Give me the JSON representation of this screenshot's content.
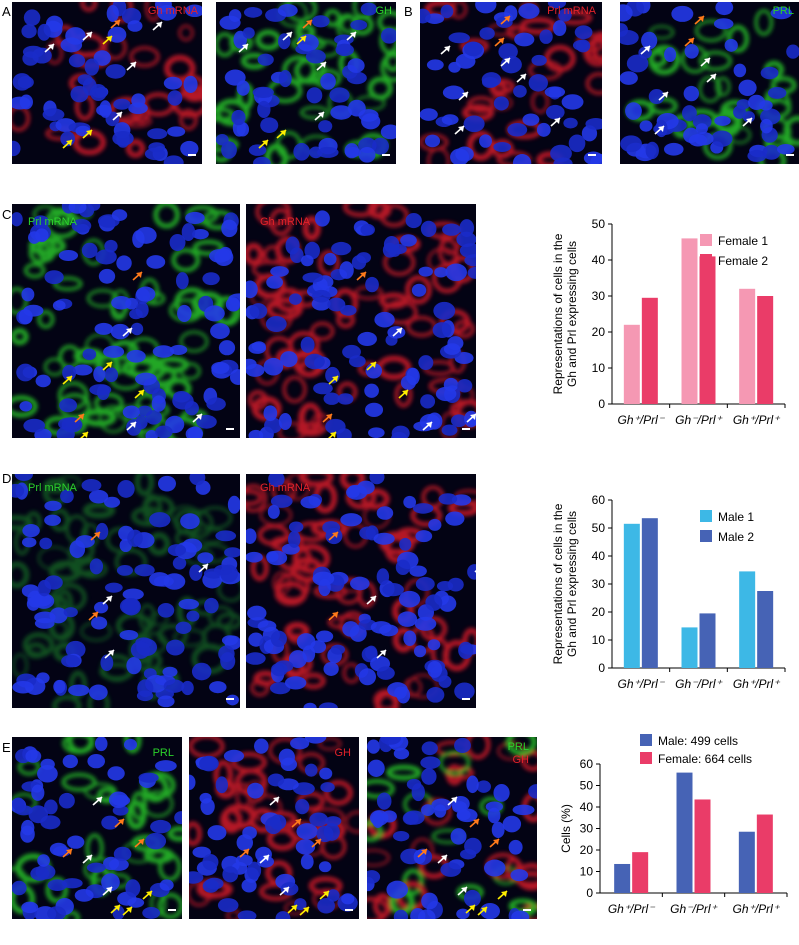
{
  "panels": {
    "A": {
      "letter": "A",
      "img1_label": "Gh mRNA",
      "img2_label": "GH"
    },
    "B": {
      "letter": "B",
      "img1_label": "Prl mRNA",
      "img2_label": "PRL"
    },
    "C": {
      "letter": "C",
      "img1_label": "Prl mRNA",
      "img2_label": "Gh mRNA"
    },
    "D": {
      "letter": "D",
      "img1_label": "Prl mRNA",
      "img2_label": "Gh mRNA"
    },
    "E": {
      "letter": "E",
      "img1_label": "PRL",
      "img2_label": "GH",
      "img3_label_a": "PRL",
      "img3_label_b": "GH"
    }
  },
  "colors": {
    "nuclei": "#1a2ee6",
    "green": "#2bd12b",
    "red": "#e2222a",
    "arrow_white": "#ffffff",
    "arrow_yellow": "#ffee00",
    "arrow_orange": "#ff7a1a"
  },
  "chart_data": [
    {
      "id": "C",
      "type": "bar",
      "categories": [
        "Gh⁺/Prl⁻",
        "Gh⁻/Prl⁺",
        "Gh⁺/Prl⁺"
      ],
      "series": [
        {
          "name": "Female 1",
          "values": [
            22,
            46,
            32
          ],
          "color": "#f598b3"
        },
        {
          "name": "Female 2",
          "values": [
            29.5,
            41,
            30
          ],
          "color": "#ea3c68"
        }
      ],
      "ylabel_line1": "Representations of cells in the",
      "ylabel_line2": "Gh and Prl expressing cells",
      "ylim": [
        0,
        50
      ],
      "yticks": [
        "0",
        "10",
        "20",
        "30",
        "40",
        "50"
      ],
      "legend": "top-right"
    },
    {
      "id": "D",
      "type": "bar",
      "categories": [
        "Gh⁺/Prl⁻",
        "Gh⁻/Prl⁺",
        "Gh⁺/Prl⁺"
      ],
      "series": [
        {
          "name": "Male 1",
          "values": [
            51.5,
            14.5,
            34.5
          ],
          "color": "#3db8e6"
        },
        {
          "name": "Male 2",
          "values": [
            53.5,
            19.5,
            27.5
          ],
          "color": "#4663b5"
        }
      ],
      "ylabel_line1": "Representations of cells in the",
      "ylabel_line2": "Gh and Prl expressing cells",
      "ylim": [
        0,
        60
      ],
      "yticks": [
        "0",
        "10",
        "20",
        "30",
        "40",
        "50",
        "60"
      ],
      "legend": "top-right"
    },
    {
      "id": "E",
      "type": "bar",
      "categories": [
        "Gh⁺/Prl⁻",
        "Gh⁻/Prl⁺",
        "Gh⁺/Prl⁺"
      ],
      "series": [
        {
          "name": "Male: 499 cells",
          "values": [
            13.5,
            56,
            28.5
          ],
          "color": "#4663b5"
        },
        {
          "name": "Female: 664 cells",
          "values": [
            19,
            43.5,
            36.5
          ],
          "color": "#ea3c68"
        }
      ],
      "ylabel": "Cells (%)",
      "ylim": [
        0,
        60
      ],
      "yticks": [
        "0",
        "10",
        "20",
        "30",
        "40",
        "50",
        "60"
      ],
      "legend": "top"
    }
  ]
}
